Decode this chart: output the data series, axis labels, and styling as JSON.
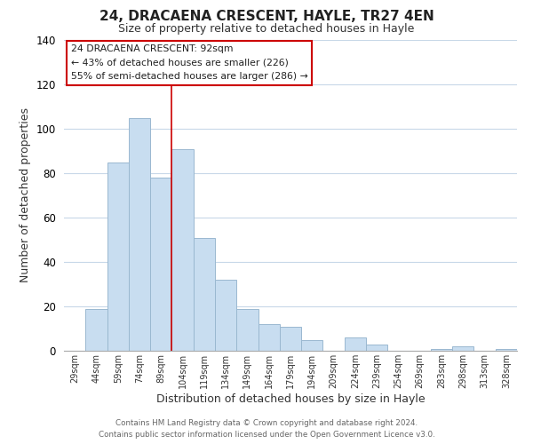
{
  "title": "24, DRACAENA CRESCENT, HAYLE, TR27 4EN",
  "subtitle": "Size of property relative to detached houses in Hayle",
  "xlabel": "Distribution of detached houses by size in Hayle",
  "ylabel": "Number of detached properties",
  "categories": [
    "29sqm",
    "44sqm",
    "59sqm",
    "74sqm",
    "89sqm",
    "104sqm",
    "119sqm",
    "134sqm",
    "149sqm",
    "164sqm",
    "179sqm",
    "194sqm",
    "209sqm",
    "224sqm",
    "239sqm",
    "254sqm",
    "269sqm",
    "283sqm",
    "298sqm",
    "313sqm",
    "328sqm"
  ],
  "values": [
    0,
    19,
    85,
    105,
    78,
    91,
    51,
    32,
    19,
    12,
    11,
    5,
    0,
    6,
    3,
    0,
    0,
    1,
    2,
    0,
    1
  ],
  "bar_color": "#c8ddf0",
  "bar_edge_color": "#9ab8d0",
  "vline_color": "#cc0000",
  "vline_bar_index": 4,
  "ylim": [
    0,
    140
  ],
  "yticks": [
    0,
    20,
    40,
    60,
    80,
    100,
    120,
    140
  ],
  "annotation_title": "24 DRACAENA CRESCENT: 92sqm",
  "annotation_line1": "← 43% of detached houses are smaller (226)",
  "annotation_line2": "55% of semi-detached houses are larger (286) →",
  "annotation_box_color": "#ffffff",
  "annotation_box_edge": "#cc0000",
  "footer_line1": "Contains HM Land Registry data © Crown copyright and database right 2024.",
  "footer_line2": "Contains public sector information licensed under the Open Government Licence v3.0.",
  "background_color": "#ffffff",
  "grid_color": "#c8d8e8",
  "title_fontsize": 11,
  "subtitle_fontsize": 9,
  "xlabel_fontsize": 9,
  "ylabel_fontsize": 9
}
